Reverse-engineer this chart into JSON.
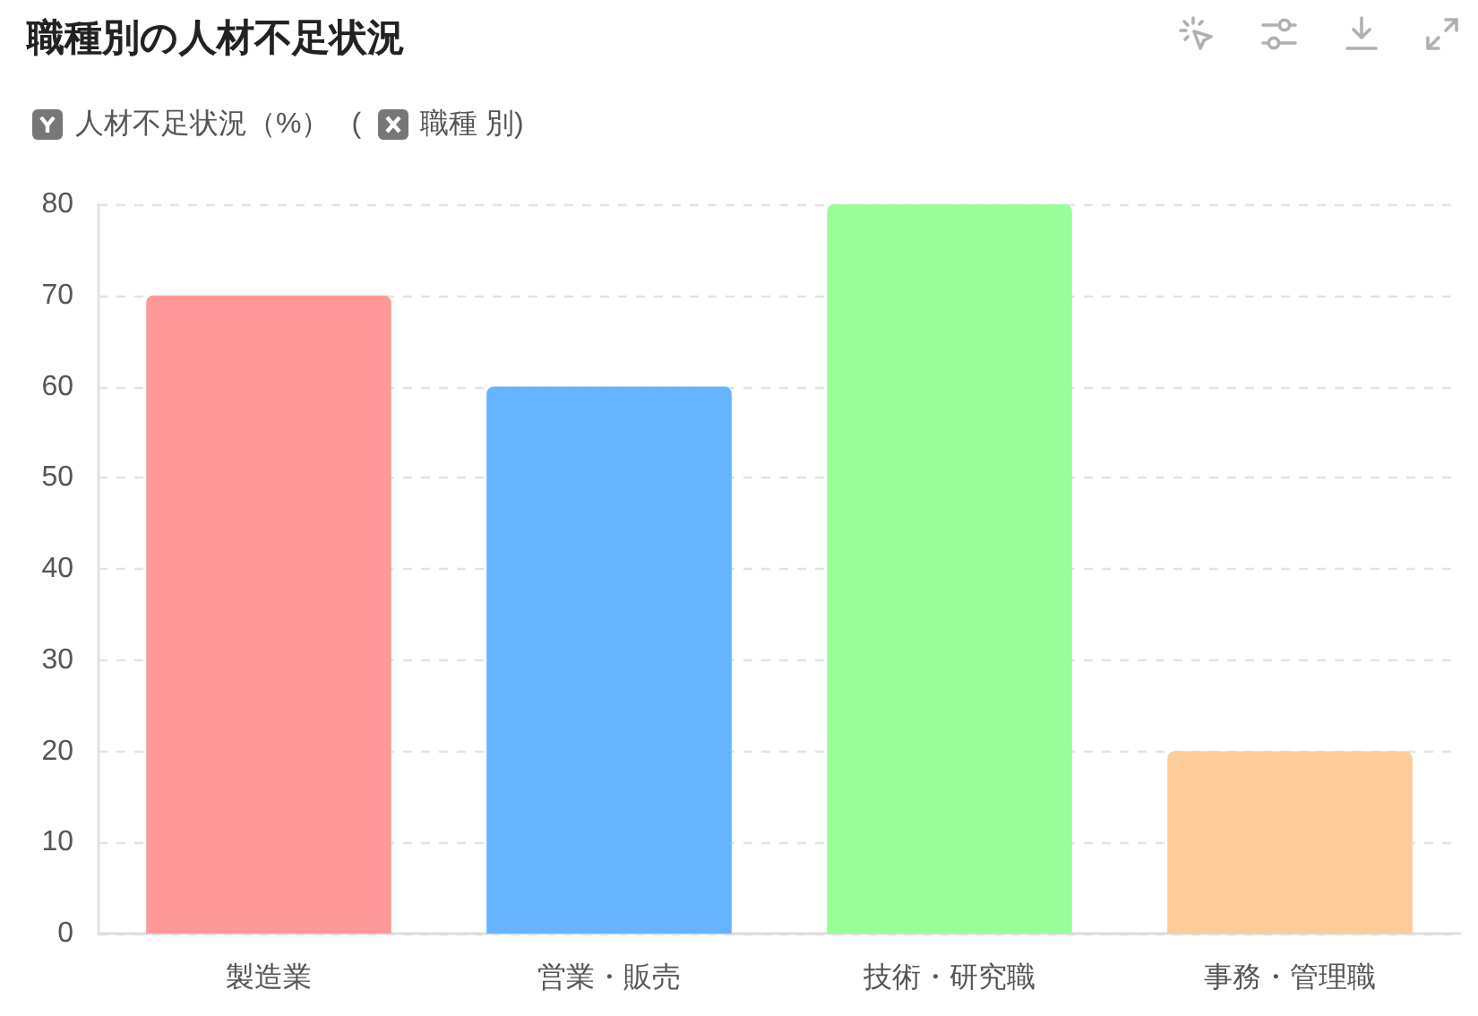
{
  "chart_data": {
    "type": "bar",
    "title": "職種別の人材不足状況",
    "ylabel": "人材不足状況（%）",
    "xlabel": "(職種 別)",
    "categories": [
      "製造業",
      "営業・販売",
      "技術・研究職",
      "事務・管理職"
    ],
    "values": [
      70,
      60,
      80,
      20
    ],
    "colors": [
      "#ff9999",
      "#66b3ff",
      "#99ff99",
      "#ffcc99"
    ],
    "ylim": [
      0,
      80
    ],
    "yticks": [
      0,
      10,
      20,
      30,
      40,
      50,
      60,
      70,
      80
    ],
    "grid": "y"
  }
}
